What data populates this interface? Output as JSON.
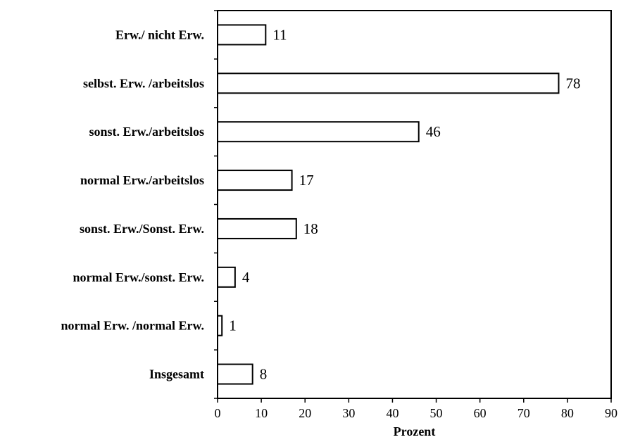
{
  "chart_data": {
    "type": "bar",
    "orientation": "horizontal",
    "categories": [
      "Erw./ nicht Erw.",
      "selbst. Erw. /arbeitslos",
      "sonst. Erw./arbeitslos",
      "normal Erw./arbeitslos",
      "sonst. Erw./Sonst. Erw.",
      "normal Erw./sonst. Erw.",
      "normal Erw. /normal Erw.",
      "Insgesamt"
    ],
    "values": [
      11,
      78,
      46,
      17,
      18,
      4,
      1,
      8
    ],
    "xlabel": "Prozent",
    "xlim": [
      0,
      90
    ],
    "xticks": [
      0,
      10,
      20,
      30,
      40,
      50,
      60,
      70,
      80,
      90
    ],
    "grid": false,
    "data_labels": true
  }
}
